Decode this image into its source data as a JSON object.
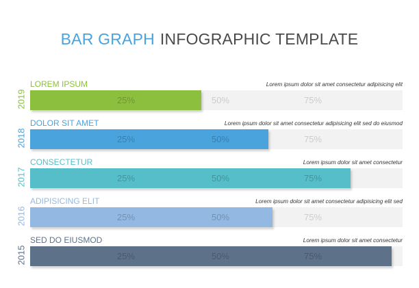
{
  "title": {
    "part1": "BAR GRAPH",
    "part2": "INFOGRAPHIC TEMPLATE"
  },
  "chart_data": {
    "type": "bar",
    "orientation": "horizontal",
    "title": "BAR GRAPH INFOGRAPHIC TEMPLATE",
    "xlim": [
      0,
      100
    ],
    "tick_values": [
      25,
      50,
      75
    ],
    "tick_labels": [
      "25%",
      "50%",
      "75%"
    ],
    "bars": [
      {
        "year": "2019",
        "label": "LOREM IPSUM",
        "description": "Lorem ipsum dolor sit amet consectetur adipisicing elit",
        "value": 46,
        "color": "#8dbf3f"
      },
      {
        "year": "2018",
        "label": "DOLOR SIT AMET",
        "description": "Lorem ipsum dolor sit amet consectetur adipisicing elit sed do eiusmod",
        "value": 64,
        "color": "#4aa3dc"
      },
      {
        "year": "2017",
        "label": "CONSECTETUR",
        "description": "Lorem ipsum dolor sit amet consectetur",
        "value": 86,
        "color": "#55bec8"
      },
      {
        "year": "2016",
        "label": "ADIPISICING ELIT",
        "description": "Lorem ipsum dolor sit amet consectetur adipisicing elit sed",
        "value": 65,
        "color": "#93b8e2"
      },
      {
        "year": "2015",
        "label": "SED DO EIUSMOD",
        "description": "Lorem ipsum dolor sit amet consectetur",
        "value": 97,
        "color": "#5d7189"
      }
    ]
  }
}
